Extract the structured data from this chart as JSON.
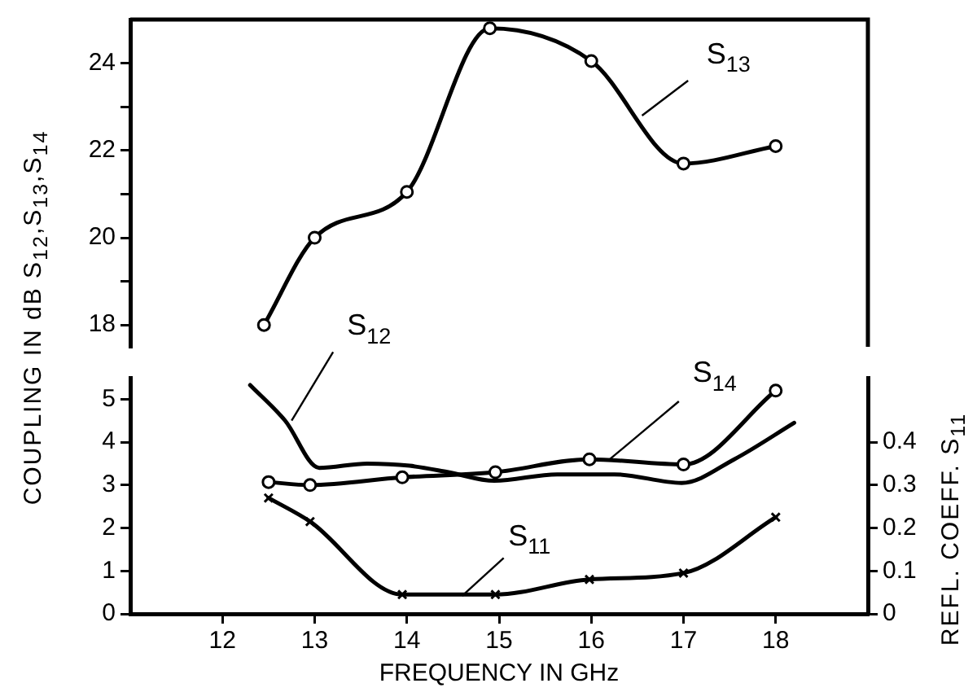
{
  "chart_data": [
    {
      "type": "line",
      "x": [
        12.45,
        13,
        14,
        14.9,
        16,
        17,
        18
      ],
      "xlim": [
        11,
        19
      ],
      "ylim": [
        17.5,
        25
      ],
      "yticks": [
        18,
        {
          "value": 19,
          "label": null
        },
        20,
        {
          "value": 21,
          "label": null
        },
        22,
        {
          "value": 23,
          "label": null
        },
        24
      ],
      "tick_labels": "y",
      "grid": false,
      "legend": false,
      "series": [
        {
          "name": "S$_{13}$",
          "color": "#000000",
          "marker": "circle",
          "values": [
            18.0,
            20.0,
            21.05,
            24.8,
            24.05,
            21.7,
            22.1
          ]
        }
      ]
    },
    {
      "type": "line",
      "xlabel": "FREQUENCY IN GHz",
      "ylabel": "COUPLING IN dB  S$_{12}$,S$_{13}$,S$_{14}$",
      "y2label": "REFL. COEFF.  S$_{11}$",
      "xlim": [
        11,
        19
      ],
      "xticks": [
        12,
        13,
        14,
        15,
        16,
        17,
        18
      ],
      "ylim": [
        0,
        5.5
      ],
      "yticks": [
        0,
        1,
        2,
        3,
        4,
        5
      ],
      "y2lim": [
        0,
        0.55
      ],
      "y2ticks": [
        0,
        0.1,
        0.2,
        0.3,
        0.4
      ],
      "grid": false,
      "legend": false,
      "series": [
        {
          "name": "S$_{12}$",
          "color": "#000000",
          "marker": "none",
          "x": [
            12.3,
            12.68,
            13.05,
            13.57,
            14.03,
            14.45,
            14.95,
            15.63,
            16.25,
            16.98,
            17.55,
            18.2
          ],
          "values": [
            5.33,
            4.5,
            3.4,
            3.5,
            3.45,
            3.3,
            3.1,
            3.25,
            3.25,
            3.05,
            3.6,
            4.45
          ]
        },
        {
          "name": "S$_{14}$",
          "color": "#000000",
          "marker": "circle",
          "x": [
            12.5,
            12.95,
            13.95,
            14.96,
            15.98,
            17,
            18
          ],
          "values": [
            3.07,
            3.0,
            3.18,
            3.3,
            3.6,
            3.48,
            5.2
          ]
        },
        {
          "name": "S$_{11}$",
          "color": "#000000",
          "marker": "cross",
          "axis": "y2",
          "x": [
            12.5,
            12.95,
            13.95,
            14.96,
            15.98,
            17,
            18
          ],
          "values": [
            0.27,
            0.215,
            0.045,
            0.045,
            0.08,
            0.095,
            0.225
          ]
        }
      ]
    }
  ]
}
